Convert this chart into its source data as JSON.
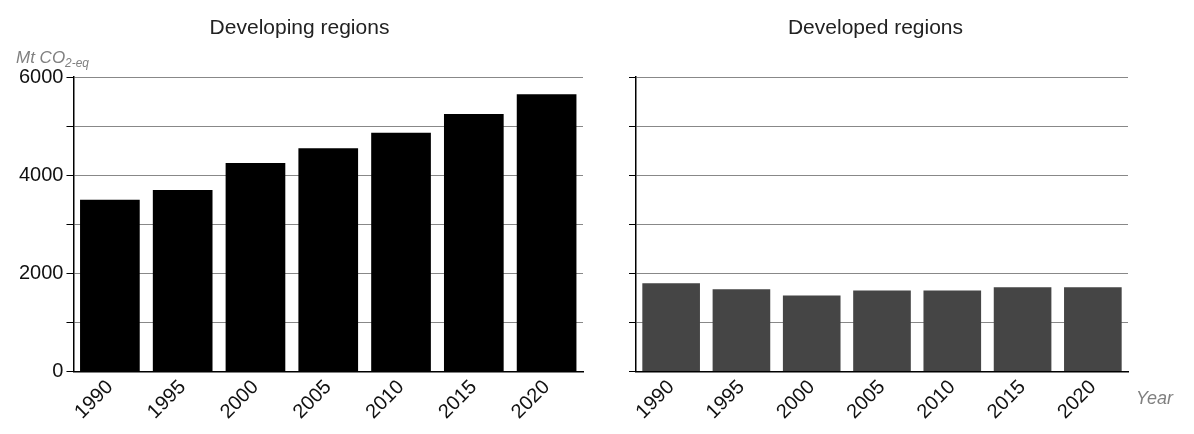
{
  "chart_data": [
    {
      "type": "bar",
      "title": "Developing regions",
      "ylabel": "Mt CO$_{2-eq}$",
      "categories": [
        "1990",
        "1995",
        "2000",
        "2005",
        "2010",
        "2015",
        "2020"
      ],
      "series": [
        {
          "color": "#000000",
          "values": [
            3500,
            3700,
            4250,
            4550,
            4870,
            5250,
            5650
          ]
        }
      ],
      "ylim": [
        0,
        6000
      ],
      "yticks": [
        0,
        {
          "value": 1000,
          "label": null
        },
        2000,
        {
          "value": 3000,
          "label": null
        },
        4000,
        {
          "value": 5000,
          "label": null
        },
        6000
      ],
      "grid": "y"
    },
    {
      "type": "bar",
      "title": "Developed regions",
      "xlabel": "Year",
      "categories": [
        "1990",
        "1995",
        "2000",
        "2005",
        "2010",
        "2015",
        "2020"
      ],
      "series": [
        {
          "color": "#454545",
          "values": [
            1800,
            1680,
            1550,
            1650,
            1650,
            1720,
            1720
          ]
        }
      ],
      "ylim": [
        0,
        6000
      ],
      "yticks": [
        0,
        1000,
        2000,
        3000,
        4000,
        5000,
        6000
      ],
      "grid": "y",
      "tick_labels": "x"
    }
  ]
}
